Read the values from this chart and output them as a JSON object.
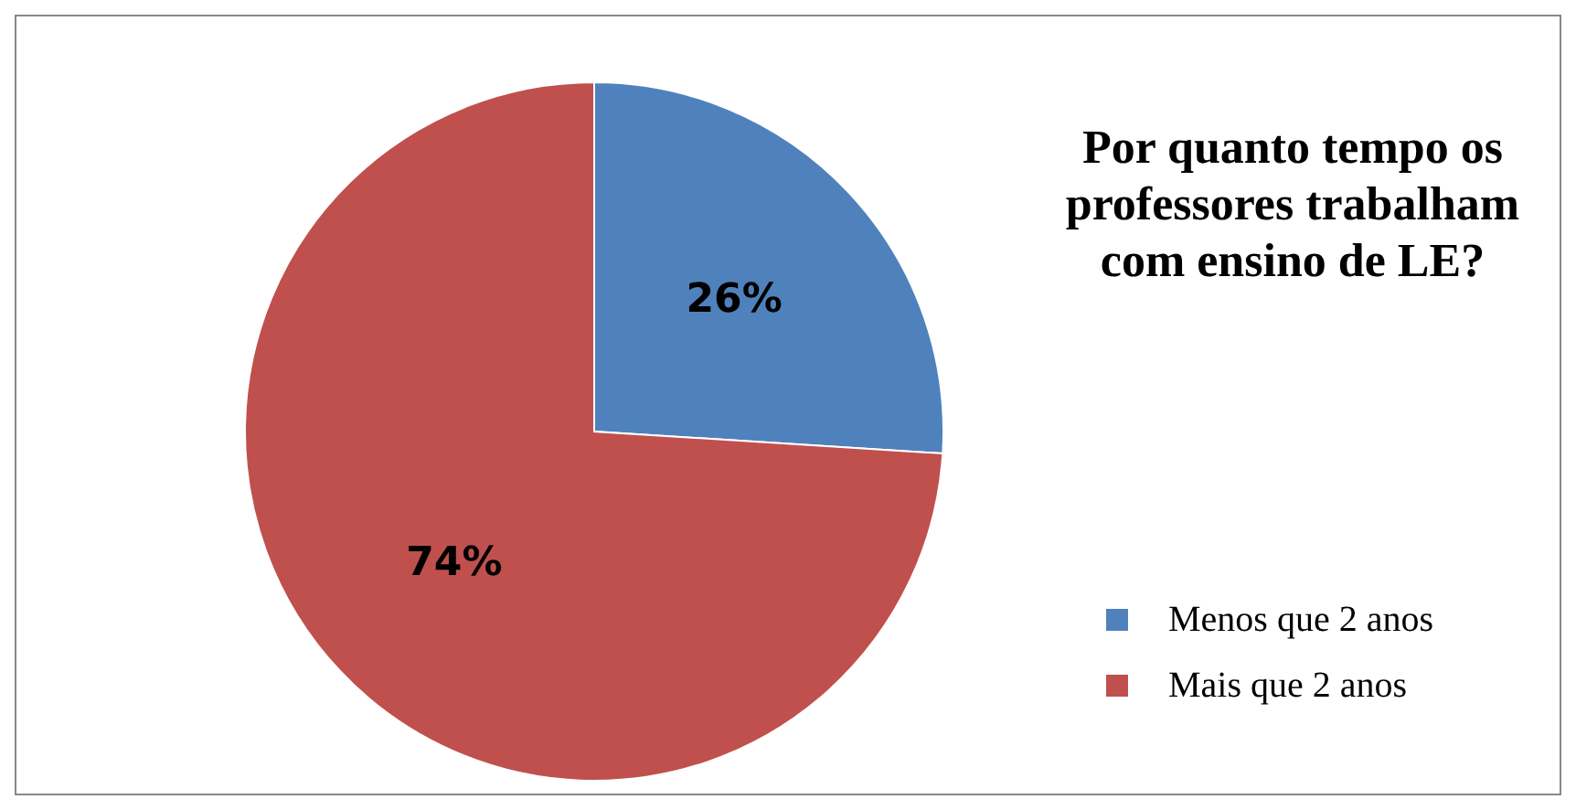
{
  "chart_data": {
    "type": "pie",
    "title": "Por quanto tempo os professores trabalham com ensino de LE?",
    "categories": [
      "Menos que 2 anos",
      "Mais que 2 anos"
    ],
    "values": [
      26,
      74
    ],
    "colors": [
      "#4f81bd",
      "#c0504d"
    ],
    "value_labels": [
      "26%",
      "74%"
    ],
    "legend": "right"
  }
}
